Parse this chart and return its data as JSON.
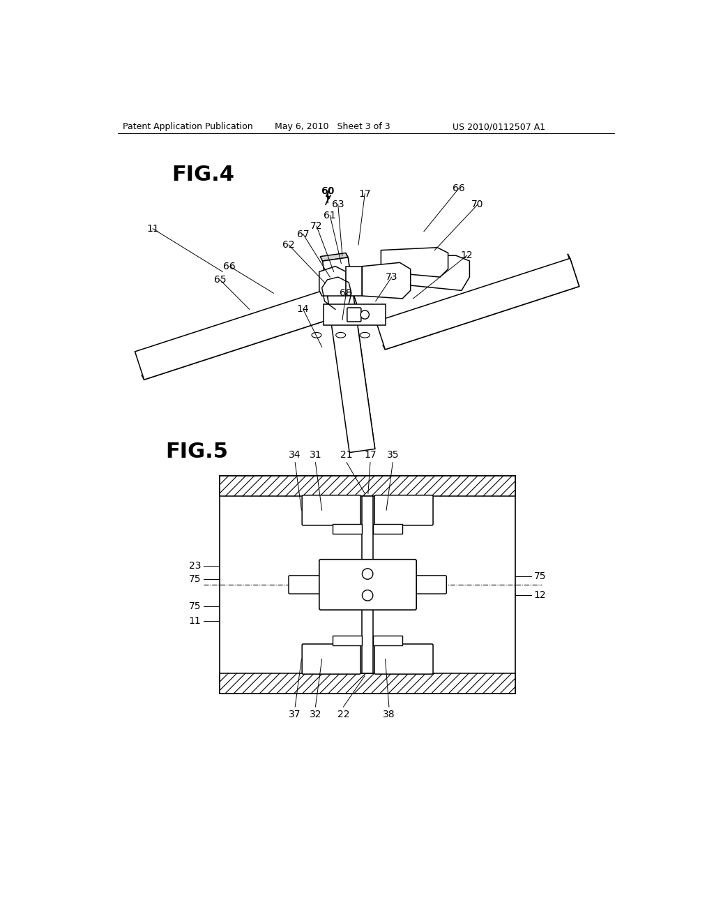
{
  "bg_color": "#ffffff",
  "text_color": "#000000",
  "line_color": "#000000",
  "header_left": "Patent Application Publication",
  "header_mid": "May 6, 2010   Sheet 3 of 3",
  "header_right": "US 2010/0112507 A1",
  "fig4_title": "FIG.4",
  "fig5_title": "FIG.5"
}
